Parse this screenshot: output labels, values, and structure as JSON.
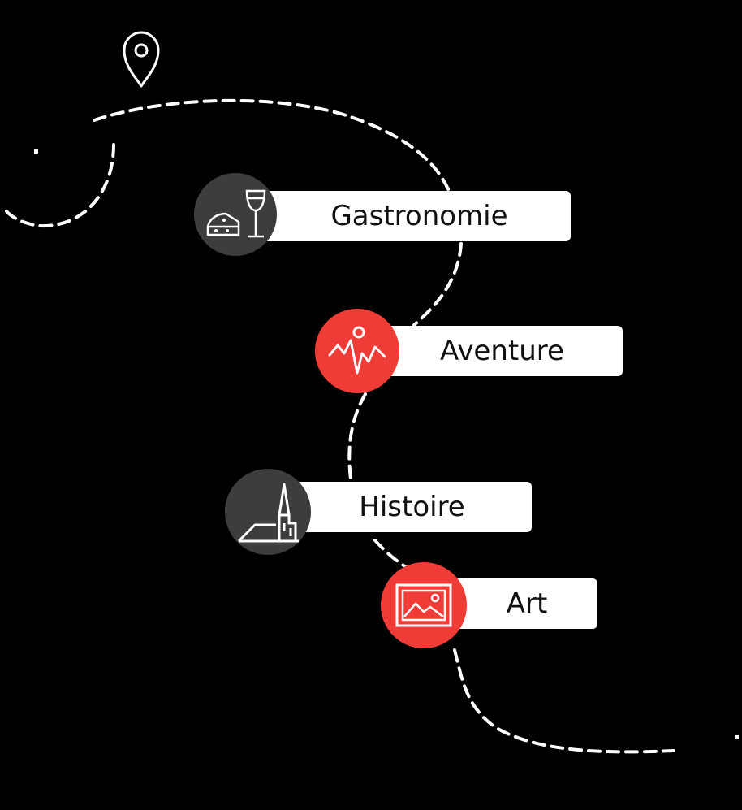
{
  "colors": {
    "background": "#000000",
    "path": "#ffffff",
    "label_bg": "#ffffff",
    "label_text": "#111111",
    "dark_circle": "#3d3d3d",
    "accent_red": "#f03c37"
  },
  "start_marker": {
    "icon": "map-pin-icon"
  },
  "categories": [
    {
      "label": "Gastronomie",
      "icon": "cheese-wine-icon",
      "circle_color": "#3d3d3d"
    },
    {
      "label": "Aventure",
      "icon": "mountains-icon",
      "circle_color": "#f03c37"
    },
    {
      "label": "Histoire",
      "icon": "church-icon",
      "circle_color": "#3d3d3d"
    },
    {
      "label": "Art",
      "icon": "picture-frame-icon",
      "circle_color": "#f03c37"
    }
  ]
}
